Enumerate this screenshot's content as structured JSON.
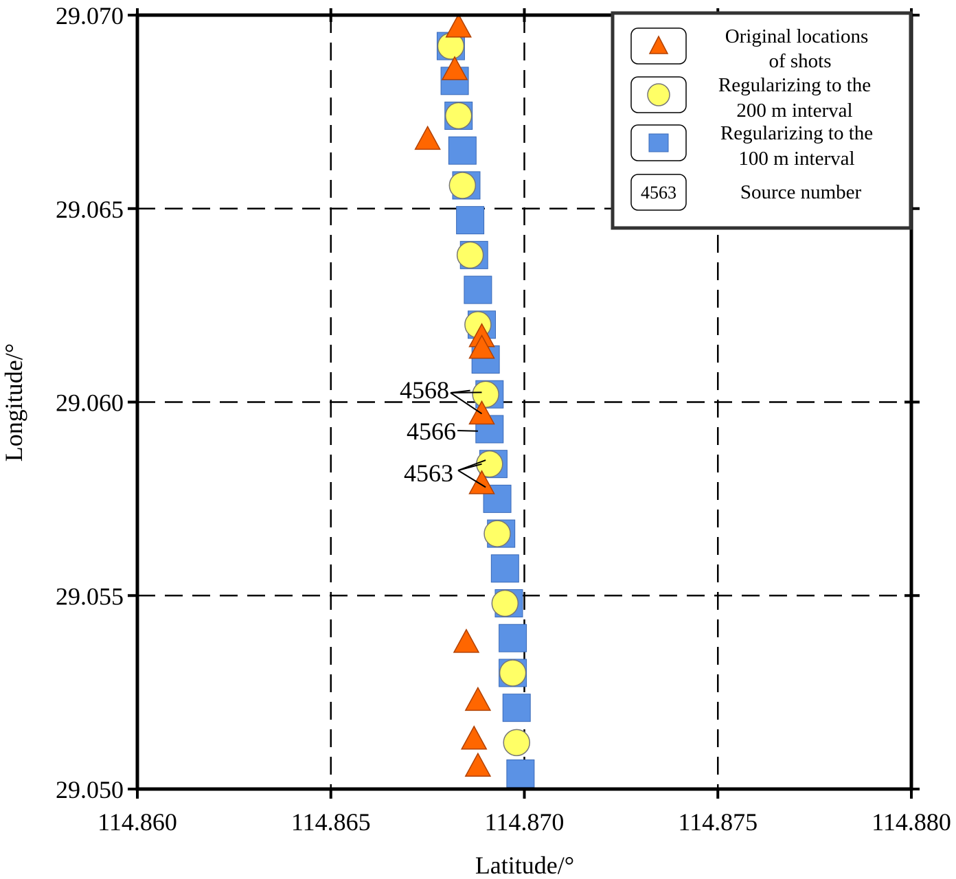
{
  "chart_data": {
    "type": "scatter",
    "title": "",
    "xlabel": "Latitude/°",
    "ylabel": "Longitude/°",
    "xlim": [
      114.86,
      114.88
    ],
    "ylim": [
      29.05,
      29.07
    ],
    "xticks": [
      "114.860",
      "114.865",
      "114.870",
      "114.875",
      "114.880"
    ],
    "yticks": [
      "29.050",
      "29.055",
      "29.060",
      "29.065",
      "29.070"
    ],
    "grid": "dashed",
    "legend_position": "top-right",
    "legend": {
      "shots": [
        "Original locations",
        "of shots"
      ],
      "reg200": [
        "Regularizing to the",
        "200 m interval"
      ],
      "reg100": [
        "Regularizing to the",
        "100 m interval"
      ],
      "source_box": "4563",
      "source_label": "Source number"
    },
    "colors": {
      "shots": "#ff6600",
      "reg200": "#ffff66",
      "reg100": "#5b92e5"
    },
    "series": [
      {
        "name": "Original locations of shots",
        "marker": "triangle",
        "x": [
          114.8683,
          114.8682,
          114.8675,
          114.8689,
          114.8689,
          114.8689,
          114.8689,
          114.8685,
          114.8688,
          114.8687,
          114.8688
        ],
        "y": [
          29.0697,
          29.0686,
          29.0668,
          29.0617,
          29.0614,
          29.0597,
          29.0579,
          29.0538,
          29.0523,
          29.0513,
          29.0506
        ]
      },
      {
        "name": "Regularizing to the 200 m interval",
        "marker": "circle",
        "x": [
          114.8681,
          114.8683,
          114.8684,
          114.8686,
          114.8688,
          114.869,
          114.8691,
          114.8693,
          114.8695,
          114.8697,
          114.8698
        ],
        "y": [
          29.0692,
          29.0674,
          29.0656,
          29.0638,
          29.062,
          29.0602,
          29.0584,
          29.0566,
          29.0548,
          29.053,
          29.0512
        ]
      },
      {
        "name": "Regularizing to the 100 m interval",
        "marker": "square",
        "x": [
          114.8681,
          114.8682,
          114.8683,
          114.8684,
          114.8685,
          114.8686,
          114.8687,
          114.8688,
          114.8689,
          114.869,
          114.8691,
          114.8691,
          114.8692,
          114.8693,
          114.8694,
          114.8695,
          114.8696,
          114.8697,
          114.8697,
          114.8698,
          114.8699
        ],
        "y": [
          29.0692,
          29.0683,
          29.0674,
          29.0665,
          29.0656,
          29.0647,
          29.0638,
          29.0629,
          29.062,
          29.0611,
          29.0602,
          29.0593,
          29.0584,
          29.0575,
          29.0566,
          29.0557,
          29.0548,
          29.0539,
          29.053,
          29.0521,
          29.0504
        ]
      }
    ],
    "annotations": [
      {
        "text": "4568",
        "targets": [
          [
            114.8689,
            29.06025
          ],
          [
            114.8686,
            29.0603
          ],
          [
            114.8689,
            29.0597
          ]
        ]
      },
      {
        "text": "4566",
        "targets": [
          [
            114.8688,
            29.05925
          ]
        ]
      },
      {
        "text": "4563",
        "targets": [
          [
            114.8689,
            29.0584
          ],
          [
            114.869,
            29.0585
          ],
          [
            114.869,
            29.0578
          ]
        ]
      }
    ]
  }
}
